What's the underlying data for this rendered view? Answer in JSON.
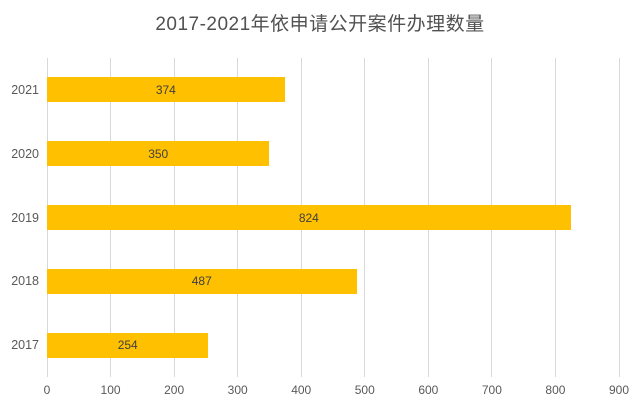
{
  "colors": {
    "background": "#FFFFFF",
    "bar_fill": "#FFC000",
    "gridline": "#D9D9D9",
    "axis_text": "#595959",
    "data_label_text": "#3F3F3F",
    "title_text": "#515151"
  },
  "chart_data": {
    "type": "bar",
    "orientation": "horizontal",
    "title": "2017-2021年依申请公开案件办理数量",
    "categories": [
      "2021",
      "2020",
      "2019",
      "2018",
      "2017"
    ],
    "values": [
      374,
      350,
      824,
      487,
      254
    ],
    "xlabel": "",
    "ylabel": "",
    "xlim": [
      0,
      900
    ],
    "xticks": [
      0,
      100,
      200,
      300,
      400,
      500,
      600,
      700,
      800,
      900
    ],
    "grid": "vertical-only",
    "legend": "none",
    "data_labels": "centered-inside-bars"
  }
}
